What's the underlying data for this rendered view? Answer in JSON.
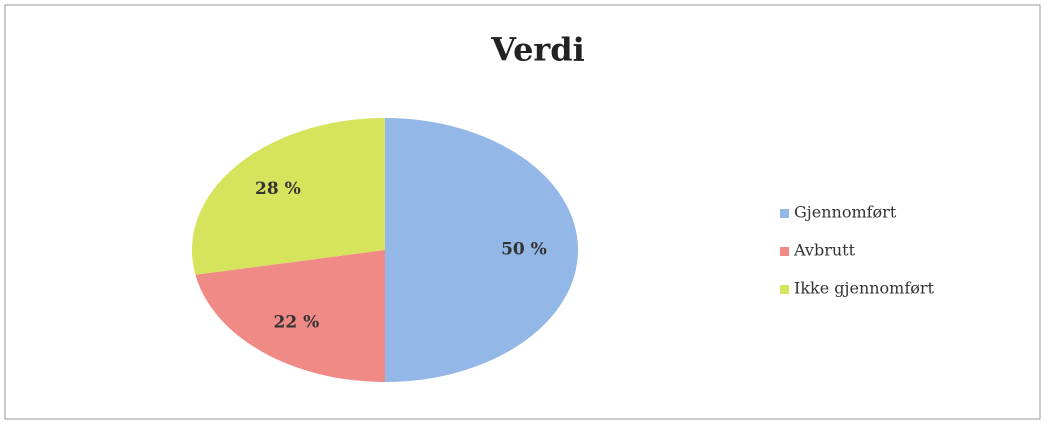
{
  "chart_data": {
    "type": "pie",
    "title": "Verdi",
    "categories": [
      "Gjennomført",
      "Avbrutt",
      "Ikke gjennomført"
    ],
    "values": [
      50,
      22,
      28
    ],
    "value_labels": [
      "50 %",
      "22 %",
      "28 %"
    ],
    "colors": [
      "#93b8e8",
      "#f08a86",
      "#d6e35c"
    ],
    "legend": "right"
  }
}
